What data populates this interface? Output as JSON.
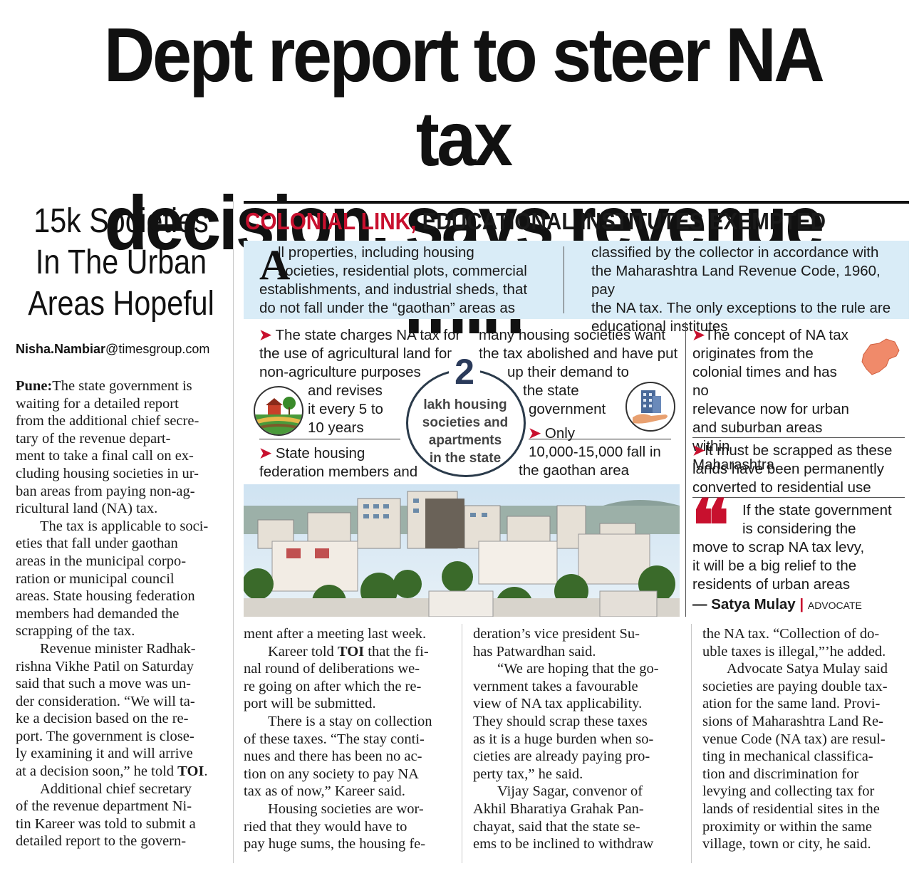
{
  "headline": [
    "Dept report to steer NA tax",
    "decision, says revenue min"
  ],
  "kicker": [
    "15k Societies",
    "In The Urban",
    "Areas Hopeful"
  ],
  "byline": {
    "name": "Nisha.Nambiar",
    "domain": "@timesgroup.com"
  },
  "box": {
    "title_red": "COLONIAL LINK,",
    "title_black": " EDUCATIONAL INSTITUTES EXEMPTED",
    "intro_dropcap": "A",
    "intro_left": [
      "ll properties, including housing",
      "societies, residential plots, commercial",
      "establishments, and industrial sheds, that",
      "do not fall under the “gaothan” areas as"
    ],
    "intro_right": [
      "classified by the collector in accordance with",
      "the Maharashtra Land Revenue Code, 1960, pay",
      "the NA tax. The only exceptions to the rule are",
      "educational institutes"
    ],
    "point1": [
      "The state charges NA tax for",
      "the use of agricultural land for",
      "non-agriculture purposes",
      "and revises",
      "it every 5 to",
      "10 years"
    ],
    "point2": [
      "State housing",
      "federation members and"
    ],
    "point2_cont": [
      "many housing societies want",
      "the tax abolished and have put",
      "up their demand to",
      "the state",
      "government"
    ],
    "point3": [
      "Only",
      "10,000-15,000 fall in",
      "the gaothan area"
    ],
    "stat_number": "2",
    "stat_label": [
      "lakh housing",
      "societies and",
      "apartments",
      "in the state"
    ],
    "side_point1": [
      "The concept of NA tax",
      "originates from the",
      "colonial times and has no",
      "relevance now for urban",
      "and suburban areas within",
      "Maharashtra"
    ],
    "side_point2": [
      "It must be scrapped as these",
      "lands have been permanently",
      "converted to residential use"
    ],
    "quote": [
      "If the state government",
      "is considering the",
      "move to scrap NA tax levy,",
      "it will be a big relief to the",
      "residents of urban areas"
    ],
    "quote_author": "— Satya Mulay",
    "quote_role": "ADVOCATE"
  },
  "col1": {
    "p1_lead": "Pune:",
    "p1": [
      "The state government is",
      "waiting for a detailed report",
      "from the additional chief secre-",
      "tary of the revenue depart-",
      "ment to take a final call on ex-",
      "cluding housing societies in ur-",
      "ban areas from paying non-ag-",
      "ricultural land (NA) tax."
    ],
    "p2": [
      "The tax is applicable to soci-",
      "eties that fall under gaothan",
      "areas in the municipal corpo-",
      "ration or municipal council",
      "areas. State housing federation",
      "members had demanded the",
      "scrapping of the tax."
    ],
    "p3": [
      "Revenue minister Radhak-",
      "rishna Vikhe Patil on Saturday",
      "said that such a move was un-",
      "der consideration. “We will ta-",
      "ke a decision based on the re-",
      "port. The government is close-",
      "ly examining it and will arrive",
      "at a decision soon,” he told"
    ],
    "p3_toi": "TOI",
    "p4": [
      "Additional chief secretary",
      "of the revenue department Ni-",
      "tin Kareer was told to submit a",
      "detailed report to the govern-"
    ]
  },
  "col2": {
    "l1": "ment after a meeting last week.",
    "p2_pre": "Kareer told ",
    "p2_toi": "TOI",
    "p2_first": " that the fi-",
    "p2": [
      "nal round of deliberations we-",
      "re going on after which the re-",
      "port will be submitted."
    ],
    "p3": [
      "There is a stay on collection",
      "of these taxes. “The stay conti-",
      "nues and there has been no ac-",
      "tion on any society to pay NA",
      "tax as of now,” Kareer said."
    ],
    "p4": [
      "Housing societies are wor-",
      "ried that they would have to",
      "pay huge sums, the housing fe-"
    ]
  },
  "col3": {
    "l1": [
      "deration’s vice president Su-",
      "has Patwardhan said."
    ],
    "p2": [
      "“We are hoping that the go-",
      "vernment takes a favourable",
      "view of NA tax applicability.",
      "They should scrap these taxes",
      "as it is a huge burden when so-",
      "cieties are already paying pro-",
      "perty tax,” he said."
    ],
    "p3": [
      "Vijay Sagar, convenor of",
      "Akhil Bharatiya Grahak Pan-",
      "chayat, said that the state se-",
      "ems to be inclined to withdraw"
    ]
  },
  "col4": {
    "l1": [
      "the NA tax. “Collection of do-",
      "uble taxes is illegal,”’he added."
    ],
    "p2": [
      "Advocate Satya Mulay said",
      "societies are paying double tax-",
      "ation for the same land. Provi-",
      "sions of Maharashtra Land Re-",
      "venue Code (NA tax) are resul-",
      "ting in mechanical classifica-",
      "tion and discrimination for",
      "levying and collecting tax for",
      "lands of residential sites in the",
      "proximity or within the same",
      "village, town or city, he said."
    ]
  },
  "colors": {
    "accent_red": "#c8102e",
    "intro_bg": "#d9ecf7",
    "text": "#1a1a1a"
  }
}
